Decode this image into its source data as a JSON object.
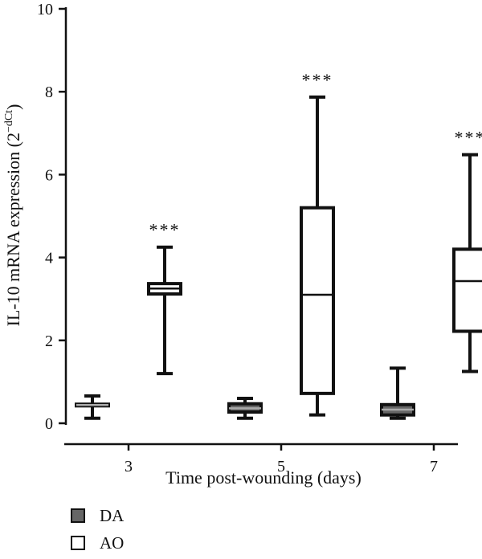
{
  "chart_data": {
    "type": "boxplot",
    "title": "",
    "xlabel": "Time post-wounding (days)",
    "ylabel": {
      "main": "IL-10 mRNA expression (2",
      "sup": "−dCt",
      "close": ")"
    },
    "categories": [
      "3",
      "5",
      "7"
    ],
    "ylim": [
      0,
      10
    ],
    "yticks": [
      "0",
      "2",
      "4",
      "6",
      "8",
      "10"
    ],
    "grid": false,
    "legend_position": "bottom-left",
    "series": [
      {
        "name": "DA",
        "fill": "#666666",
        "boxes": [
          {
            "category": "3",
            "min": 0.12,
            "q1": 0.42,
            "median": 0.44,
            "q3": 0.46,
            "max": 0.66
          },
          {
            "category": "5",
            "min": 0.12,
            "q1": 0.27,
            "median": 0.36,
            "q3": 0.47,
            "max": 0.6
          },
          {
            "category": "7",
            "min": 0.12,
            "q1": 0.2,
            "median": 0.33,
            "q3": 0.45,
            "max": 1.33
          }
        ]
      },
      {
        "name": "AO",
        "fill": "#ffffff",
        "boxes": [
          {
            "category": "3",
            "min": 1.2,
            "q1": 3.12,
            "median": 3.25,
            "q3": 3.37,
            "max": 4.25
          },
          {
            "category": "5",
            "min": 0.2,
            "q1": 0.72,
            "median": 3.1,
            "q3": 5.2,
            "max": 7.87
          },
          {
            "category": "7",
            "min": 1.25,
            "q1": 2.22,
            "median": 3.43,
            "q3": 4.2,
            "max": 6.48
          }
        ],
        "annotations": [
          "***",
          "***",
          "***"
        ]
      }
    ]
  }
}
